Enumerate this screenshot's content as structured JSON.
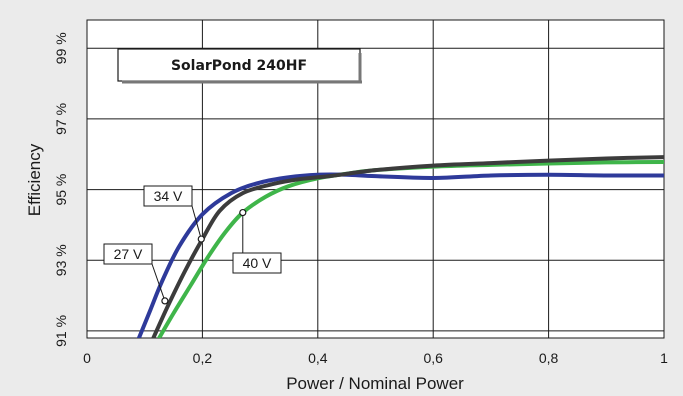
{
  "chart_data": {
    "type": "line",
    "title": "SolarPond 240HF",
    "xlabel": "Power / Nominal Power",
    "ylabel": "Efficiency",
    "xlim": [
      0,
      1
    ],
    "ylim": [
      90.8,
      99.8
    ],
    "x_ticks": [
      {
        "value": 0,
        "label": "0"
      },
      {
        "value": 0.2,
        "label": "0,2"
      },
      {
        "value": 0.4,
        "label": "0,4"
      },
      {
        "value": 0.6,
        "label": "0,6"
      },
      {
        "value": 0.8,
        "label": "0,8"
      },
      {
        "value": 1,
        "label": "1"
      }
    ],
    "y_ticks": [
      {
        "value": 91,
        "label": "91 %"
      },
      {
        "value": 93,
        "label": "93 %"
      },
      {
        "value": 95,
        "label": "95 %"
      },
      {
        "value": 97,
        "label": "97 %"
      },
      {
        "value": 99,
        "label": "99 %"
      }
    ],
    "grid": true,
    "series": [
      {
        "name": "27 V",
        "color": "#2e3a9a",
        "x": [
          0.09,
          0.11,
          0.13,
          0.16,
          0.2,
          0.25,
          0.3,
          0.35,
          0.4,
          0.45,
          0.5,
          0.6,
          0.7,
          0.8,
          0.9,
          1.0
        ],
        "y": [
          90.8,
          91.6,
          92.4,
          93.4,
          94.3,
          94.9,
          95.2,
          95.35,
          95.42,
          95.42,
          95.38,
          95.33,
          95.4,
          95.42,
          95.4,
          95.4
        ]
      },
      {
        "name": "34 V",
        "color": "#3c3c3c",
        "x": [
          0.115,
          0.14,
          0.17,
          0.2,
          0.23,
          0.27,
          0.32,
          0.37,
          0.42,
          0.5,
          0.6,
          0.7,
          0.8,
          0.9,
          1.0
        ],
        "y": [
          90.8,
          91.7,
          92.7,
          93.6,
          94.4,
          94.9,
          95.15,
          95.3,
          95.38,
          95.55,
          95.68,
          95.75,
          95.82,
          95.88,
          95.92
        ]
      },
      {
        "name": "40 V",
        "color": "#3fb54a",
        "x": [
          0.125,
          0.15,
          0.18,
          0.21,
          0.24,
          0.27,
          0.31,
          0.35,
          0.4,
          0.45,
          0.5,
          0.6,
          0.7,
          0.8,
          0.9,
          1.0
        ],
        "y": [
          90.8,
          91.5,
          92.3,
          93.1,
          93.8,
          94.35,
          94.8,
          95.1,
          95.32,
          95.45,
          95.55,
          95.65,
          95.7,
          95.74,
          95.77,
          95.78
        ]
      }
    ],
    "annotations": [
      {
        "label": "27 V",
        "series": "27 V",
        "x": 0.135,
        "y": 91.85
      },
      {
        "label": "34 V",
        "series": "34 V",
        "x": 0.198,
        "y": 93.6
      },
      {
        "label": "40 V",
        "series": "40 V",
        "x": 0.27,
        "y": 94.35
      }
    ]
  }
}
